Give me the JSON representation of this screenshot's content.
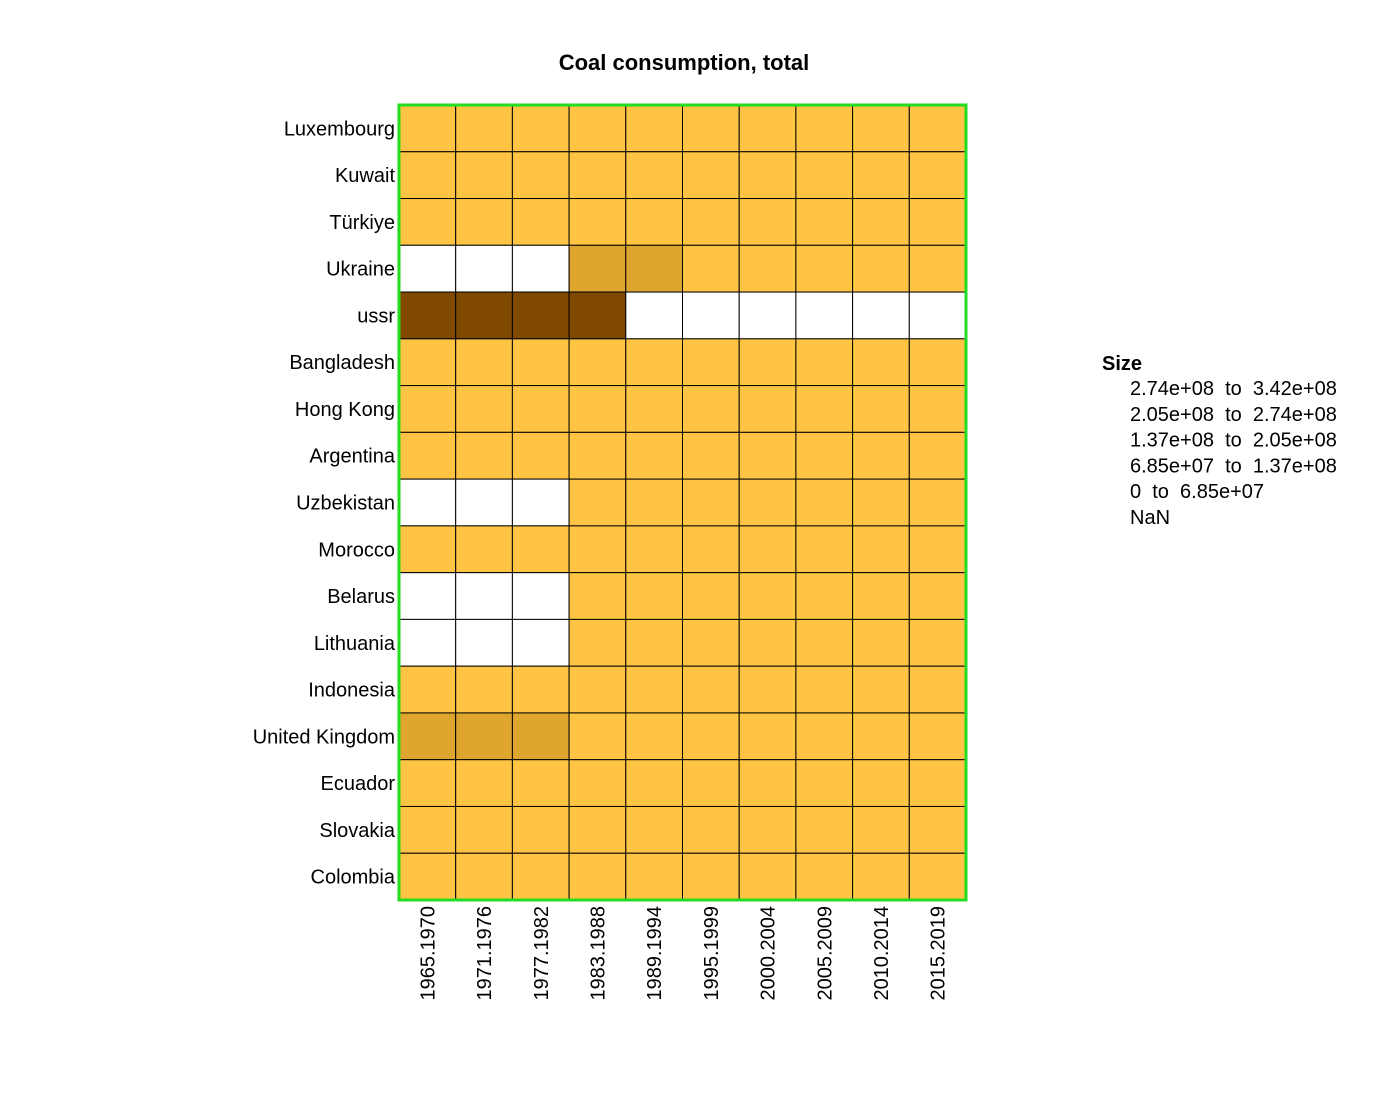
{
  "chart_data": {
    "type": "heatmap",
    "title": "Coal consumption, total",
    "xlabel": "",
    "ylabel": "",
    "rows": [
      "Luxembourg",
      "Kuwait",
      "Türkiye",
      "Ukraine",
      "ussr",
      "Bangladesh",
      "Hong Kong",
      "Argentina",
      "Uzbekistan",
      "Morocco",
      "Belarus",
      "Lithuania",
      "Indonesia",
      "United Kingdom",
      "Ecuador",
      "Slovakia",
      "Colombia"
    ],
    "columns": [
      "1965.1970",
      "1971.1976",
      "1977.1982",
      "1983.1988",
      "1989.1994",
      "1995.1999",
      "2000.2004",
      "2005.2009",
      "2010.2014",
      "2015.2019"
    ],
    "bins": [
      {
        "label": "NaN",
        "color": "#ffffff"
      },
      {
        "label": "0  to  6.85e+07",
        "color": "#ffc444"
      },
      {
        "label": "6.85e+07  to  1.37e+08",
        "color": "#dfa62f"
      },
      {
        "label": "1.37e+08  to  2.05e+08",
        "color": "#bf881f"
      },
      {
        "label": "2.05e+08  to  2.74e+08",
        "color": "#9f6a11"
      },
      {
        "label": "2.74e+08  to  3.42e+08",
        "color": "#7f4a00"
      }
    ],
    "values_bin_index": [
      [
        1,
        1,
        1,
        1,
        1,
        1,
        1,
        1,
        1,
        1
      ],
      [
        1,
        1,
        1,
        1,
        1,
        1,
        1,
        1,
        1,
        1
      ],
      [
        1,
        1,
        1,
        1,
        1,
        1,
        1,
        1,
        1,
        1
      ],
      [
        0,
        0,
        0,
        2,
        2,
        1,
        1,
        1,
        1,
        1
      ],
      [
        5,
        5,
        5,
        5,
        0,
        0,
        0,
        0,
        0,
        0
      ],
      [
        1,
        1,
        1,
        1,
        1,
        1,
        1,
        1,
        1,
        1
      ],
      [
        1,
        1,
        1,
        1,
        1,
        1,
        1,
        1,
        1,
        1
      ],
      [
        1,
        1,
        1,
        1,
        1,
        1,
        1,
        1,
        1,
        1
      ],
      [
        0,
        0,
        0,
        1,
        1,
        1,
        1,
        1,
        1,
        1
      ],
      [
        1,
        1,
        1,
        1,
        1,
        1,
        1,
        1,
        1,
        1
      ],
      [
        0,
        0,
        0,
        1,
        1,
        1,
        1,
        1,
        1,
        1
      ],
      [
        0,
        0,
        0,
        1,
        1,
        1,
        1,
        1,
        1,
        1
      ],
      [
        1,
        1,
        1,
        1,
        1,
        1,
        1,
        1,
        1,
        1
      ],
      [
        2,
        2,
        2,
        1,
        1,
        1,
        1,
        1,
        1,
        1
      ],
      [
        1,
        1,
        1,
        1,
        1,
        1,
        1,
        1,
        1,
        1
      ],
      [
        1,
        1,
        1,
        1,
        1,
        1,
        1,
        1,
        1,
        1
      ],
      [
        1,
        1,
        1,
        1,
        1,
        1,
        1,
        1,
        1,
        1
      ]
    ],
    "legend": {
      "title": "Size",
      "placement": "right",
      "entries_top_to_bottom": [
        5,
        4,
        3,
        2,
        1,
        0
      ]
    },
    "border_color": "#22dd22",
    "cell_line_color": "#000000"
  }
}
